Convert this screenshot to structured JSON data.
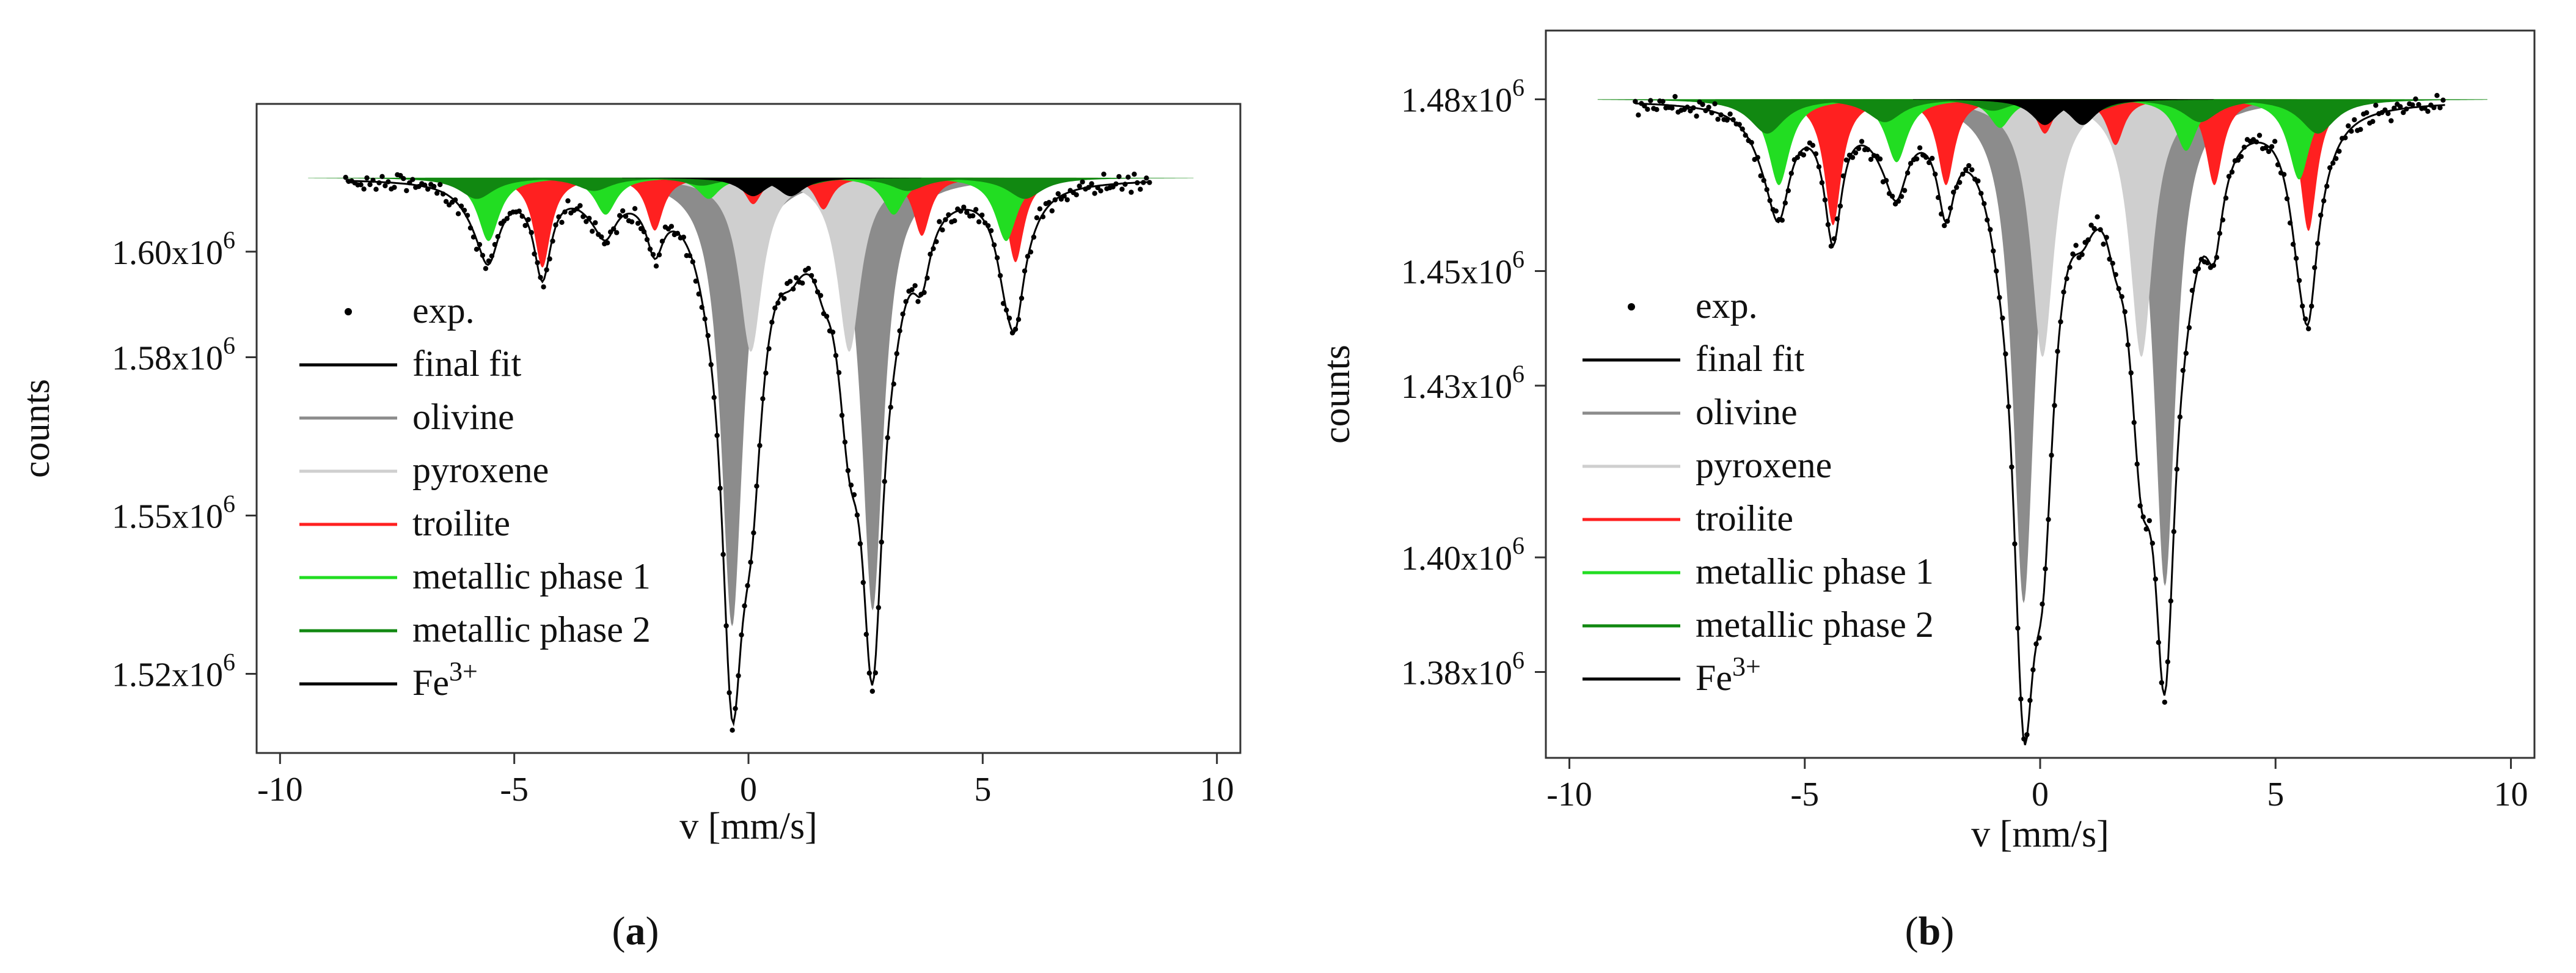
{
  "chart_data": [
    {
      "type": "scatter",
      "panel_caption": "(a)",
      "xlabel": "v [mm/s]",
      "ylabel": "counts",
      "xlim": [
        -10.5,
        10.5
      ],
      "ylim": [
        1505000,
        1628000
      ],
      "x_ticks": [
        -10,
        -5,
        0,
        5,
        10
      ],
      "x_tick_labels": [
        "-10",
        "-5",
        "0",
        "5",
        "10"
      ],
      "y_ticks": [
        1520000,
        1550000,
        1580000,
        1600000
      ],
      "y_tick_labels": [
        {
          "mantissa": "1.52x10",
          "exp": "6"
        },
        {
          "mantissa": "1.55x10",
          "exp": "6"
        },
        {
          "mantissa": "1.58x10",
          "exp": "6"
        },
        {
          "mantissa": "1.60x10",
          "exp": "6"
        }
      ],
      "baseline": 1614000,
      "legend": [
        {
          "label": "exp.",
          "style": "dot",
          "color": "#000000"
        },
        {
          "label": "final fit",
          "style": "line",
          "color": "#000000"
        },
        {
          "label": "olivine",
          "style": "line",
          "color": "#8c8c8c"
        },
        {
          "label": "pyroxene",
          "style": "line",
          "color": "#cfcfcf"
        },
        {
          "label": "troilite",
          "style": "line",
          "color": "#ff2020"
        },
        {
          "label": "metallic phase 1",
          "style": "line",
          "color": "#22dd22"
        },
        {
          "label": "metallic phase 2",
          "style": "line",
          "color": "#118811"
        },
        {
          "label": "Fe",
          "sup": "3+",
          "style": "line",
          "color": "#000000"
        }
      ],
      "series": [
        {
          "name": "olivine",
          "color": "#8c8c8c",
          "width": 0.28,
          "lines": [
            [
              -0.35,
              85000
            ],
            [
              2.65,
              82000
            ]
          ]
        },
        {
          "name": "pyroxene",
          "color": "#cfcfcf",
          "width": 0.3,
          "lines": [
            [
              0.05,
              33000
            ],
            [
              2.15,
              33000
            ]
          ]
        },
        {
          "name": "troilite",
          "color": "#ff2020",
          "width": 0.22,
          "lines": [
            [
              -4.4,
              17000
            ],
            [
              -2.0,
              10000
            ],
            [
              0.1,
              5000
            ],
            [
              1.6,
              6000
            ],
            [
              3.7,
              11000
            ],
            [
              5.7,
              16000
            ]
          ]
        },
        {
          "name": "metallic phase 1",
          "color": "#22dd22",
          "width": 0.28,
          "lines": [
            [
              -5.55,
              12000
            ],
            [
              -3.05,
              7000
            ],
            [
              -0.85,
              4000
            ],
            [
              0.9,
              3000
            ],
            [
              3.1,
              7000
            ],
            [
              5.5,
              12000
            ]
          ]
        },
        {
          "name": "metallic phase 2",
          "color": "#118811",
          "width": 0.45,
          "lines": [
            [
              -5.8,
              4000
            ],
            [
              -3.3,
              2500
            ],
            [
              -1.0,
              1500
            ],
            [
              1.2,
              1500
            ],
            [
              3.4,
              2500
            ],
            [
              5.9,
              4000
            ]
          ]
        },
        {
          "name": "Fe",
          "sup": "3+",
          "color": "#000000",
          "width": 0.35,
          "lines": [
            [
              0.1,
              3500
            ],
            [
              0.9,
              3500
            ]
          ]
        }
      ],
      "x_range": [
        -8.6,
        8.6
      ],
      "noise": 1200
    },
    {
      "type": "scatter",
      "panel_caption": "(b)",
      "xlabel": "v [mm/s]",
      "ylabel": "counts",
      "xlim": [
        -10.5,
        10.5
      ],
      "ylim": [
        1365000,
        1492000
      ],
      "x_ticks": [
        -10,
        -5,
        0,
        5,
        10
      ],
      "x_tick_labels": [
        "-10",
        "-5",
        "0",
        "5",
        "10"
      ],
      "y_ticks": [
        1380000,
        1400000,
        1430000,
        1450000,
        1480000
      ],
      "y_tick_labels": [
        {
          "mantissa": "1.38x10",
          "exp": "6"
        },
        {
          "mantissa": "1.40x10",
          "exp": "6"
        },
        {
          "mantissa": "1.43x10",
          "exp": "6"
        },
        {
          "mantissa": "1.45x10",
          "exp": "6"
        },
        {
          "mantissa": "1.48x10",
          "exp": "6"
        }
      ],
      "baseline": 1480000,
      "legend": [
        {
          "label": "exp.",
          "style": "dot",
          "color": "#000000"
        },
        {
          "label": "final fit",
          "style": "line",
          "color": "#000000"
        },
        {
          "label": "olivine",
          "style": "line",
          "color": "#8c8c8c"
        },
        {
          "label": "pyroxene",
          "style": "line",
          "color": "#cfcfcf"
        },
        {
          "label": "troilite",
          "style": "line",
          "color": "#ff2020"
        },
        {
          "label": "metallic phase 1",
          "style": "line",
          "color": "#22dd22"
        },
        {
          "label": "metallic phase 2",
          "style": "line",
          "color": "#118811"
        },
        {
          "label": "Fe",
          "sup": "3+",
          "style": "line",
          "color": "#000000"
        }
      ],
      "series": [
        {
          "name": "olivine",
          "color": "#8c8c8c",
          "width": 0.28,
          "lines": [
            [
              -0.35,
              88000
            ],
            [
              2.65,
              85000
            ]
          ]
        },
        {
          "name": "pyroxene",
          "color": "#cfcfcf",
          "width": 0.3,
          "lines": [
            [
              0.05,
              45000
            ],
            [
              2.15,
              45000
            ]
          ]
        },
        {
          "name": "troilite",
          "color": "#ff2020",
          "width": 0.22,
          "lines": [
            [
              -4.4,
              22000
            ],
            [
              -2.0,
              15000
            ],
            [
              0.1,
              6000
            ],
            [
              1.6,
              8000
            ],
            [
              3.7,
              15000
            ],
            [
              5.7,
              23000
            ]
          ]
        },
        {
          "name": "metallic phase 1",
          "color": "#22dd22",
          "width": 0.28,
          "lines": [
            [
              -5.55,
              15000
            ],
            [
              -3.05,
              11000
            ],
            [
              -0.85,
              5000
            ],
            [
              0.9,
              4000
            ],
            [
              3.1,
              9000
            ],
            [
              5.5,
              14000
            ]
          ]
        },
        {
          "name": "metallic phase 2",
          "color": "#118811",
          "width": 0.45,
          "lines": [
            [
              -5.8,
              6000
            ],
            [
              -3.3,
              4000
            ],
            [
              -1.0,
              2000
            ],
            [
              1.2,
              2000
            ],
            [
              3.4,
              4000
            ],
            [
              5.9,
              6000
            ]
          ]
        },
        {
          "name": "Fe",
          "sup": "3+",
          "color": "#000000",
          "width": 0.35,
          "lines": [
            [
              0.1,
              4500
            ],
            [
              0.9,
              4500
            ]
          ]
        }
      ],
      "x_range": [
        -8.6,
        8.6
      ],
      "noise": 1300
    }
  ]
}
